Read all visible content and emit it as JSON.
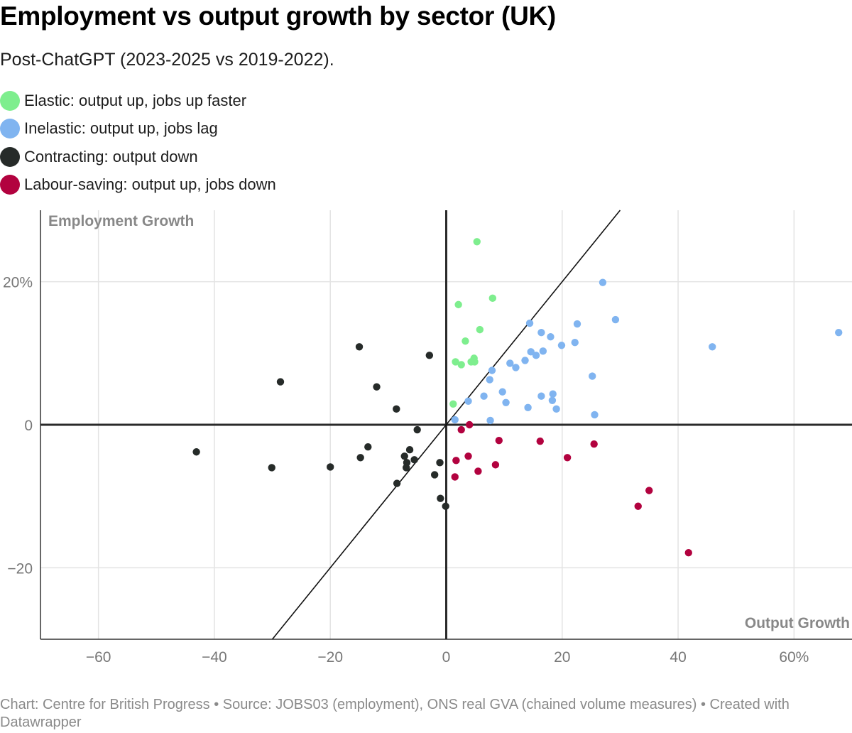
{
  "chart_data": {
    "type": "scatter",
    "title": "Employment vs output growth by sector (UK)",
    "subtitle": "Post-ChatGPT (2023-2025 vs 2019-2022).",
    "xlabel": "Output Growth",
    "ylabel": "Employment Growth",
    "xlim": [
      -70,
      70
    ],
    "ylim": [
      -30,
      30
    ],
    "x_ticks": [
      {
        "v": -60,
        "label": "−60"
      },
      {
        "v": -40,
        "label": "−40"
      },
      {
        "v": -20,
        "label": "−20"
      },
      {
        "v": 0,
        "label": "0"
      },
      {
        "v": 20,
        "label": "20"
      },
      {
        "v": 40,
        "label": "40"
      },
      {
        "v": 60,
        "label": "60%"
      }
    ],
    "y_ticks": [
      {
        "v": 20,
        "label": "20%"
      },
      {
        "v": 0,
        "label": "0"
      },
      {
        "v": -20,
        "label": "−20"
      }
    ],
    "grid": true,
    "legend_position": "top-left",
    "reference_line": {
      "type": "y=x"
    },
    "series": [
      {
        "name": "Elastic: output up, jobs up faster",
        "color": "#7eee8e",
        "points": [
          [
            5.3,
            25.6
          ],
          [
            2.1,
            16.8
          ],
          [
            8.0,
            17.7
          ],
          [
            3.3,
            11.7
          ],
          [
            5.8,
            13.3
          ],
          [
            1.6,
            8.8
          ],
          [
            2.6,
            8.4
          ],
          [
            4.8,
            9.3
          ],
          [
            4.3,
            8.8
          ],
          [
            4.9,
            8.8
          ],
          [
            1.2,
            2.9
          ]
        ]
      },
      {
        "name": "Inelastic: output up, jobs lag",
        "color": "#80b4f0",
        "points": [
          [
            27.0,
            19.9
          ],
          [
            29.2,
            14.7
          ],
          [
            22.6,
            14.1
          ],
          [
            14.4,
            14.2
          ],
          [
            16.4,
            12.9
          ],
          [
            18.0,
            12.3
          ],
          [
            19.9,
            11.1
          ],
          [
            22.2,
            11.5
          ],
          [
            14.6,
            10.2
          ],
          [
            16.7,
            10.3
          ],
          [
            15.5,
            9.7
          ],
          [
            13.6,
            9.0
          ],
          [
            11.0,
            8.6
          ],
          [
            12.0,
            8.0
          ],
          [
            7.9,
            7.6
          ],
          [
            7.5,
            6.3
          ],
          [
            25.2,
            6.8
          ],
          [
            9.7,
            4.6
          ],
          [
            6.5,
            4.0
          ],
          [
            10.3,
            3.1
          ],
          [
            3.8,
            3.3
          ],
          [
            18.4,
            4.3
          ],
          [
            18.3,
            3.4
          ],
          [
            16.4,
            4.0
          ],
          [
            14.1,
            2.4
          ],
          [
            19.0,
            2.2
          ],
          [
            25.6,
            1.4
          ],
          [
            1.5,
            0.7
          ],
          [
            7.6,
            0.6
          ],
          [
            45.9,
            10.9
          ],
          [
            67.7,
            12.9
          ]
        ]
      },
      {
        "name": "Contracting: output down",
        "color": "#262b29",
        "points": [
          [
            -43.1,
            -3.8
          ],
          [
            -28.6,
            6.0
          ],
          [
            -30.1,
            -6.0
          ],
          [
            -20.0,
            -5.9
          ],
          [
            -15.0,
            10.9
          ],
          [
            -12.0,
            5.3
          ],
          [
            -2.9,
            9.7
          ],
          [
            -8.6,
            2.2
          ],
          [
            -5.0,
            -0.7
          ],
          [
            -13.5,
            -3.1
          ],
          [
            -14.8,
            -4.6
          ],
          [
            -6.3,
            -3.5
          ],
          [
            -7.2,
            -4.4
          ],
          [
            -5.5,
            -4.9
          ],
          [
            -6.8,
            -5.3
          ],
          [
            -6.9,
            -6.0
          ],
          [
            -8.5,
            -8.2
          ],
          [
            -1.1,
            -5.3
          ],
          [
            -2.0,
            -7.0
          ],
          [
            -1.0,
            -10.3
          ],
          [
            -0.1,
            -11.4
          ]
        ]
      },
      {
        "name": "Labour-saving: output up, jobs down",
        "color": "#b2023f",
        "points": [
          [
            2.6,
            -0.7
          ],
          [
            4.0,
            0.0
          ],
          [
            9.1,
            -2.2
          ],
          [
            1.7,
            -5.0
          ],
          [
            3.8,
            -4.4
          ],
          [
            8.5,
            -5.6
          ],
          [
            5.5,
            -6.5
          ],
          [
            1.5,
            -7.3
          ],
          [
            16.2,
            -2.3
          ],
          [
            25.5,
            -2.7
          ],
          [
            20.9,
            -4.6
          ],
          [
            35.0,
            -9.2
          ],
          [
            33.1,
            -11.4
          ],
          [
            41.8,
            -17.9
          ]
        ]
      }
    ]
  },
  "footer": "Chart: Centre for British Progress • Source: JOBS03 (employment), ONS real GVA (chained volume measures) • Created with Datawrapper"
}
